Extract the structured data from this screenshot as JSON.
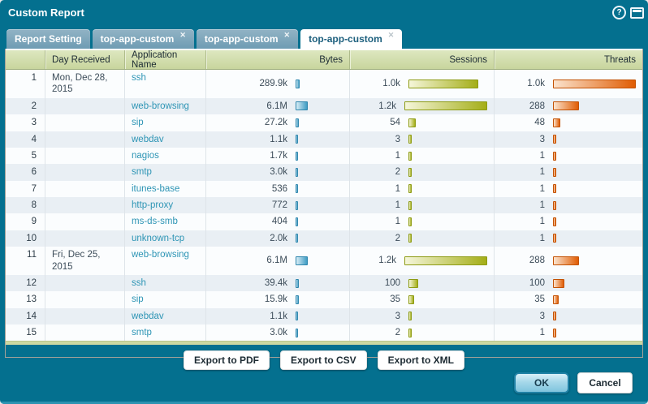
{
  "dialog": {
    "title": "Custom Report"
  },
  "titlebar_icons": {
    "help": "?"
  },
  "tabs": [
    {
      "label": "Report Setting",
      "closable": false,
      "active": false
    },
    {
      "label": "top-app-custom",
      "closable": true,
      "active": false
    },
    {
      "label": "top-app-custom",
      "closable": true,
      "active": false
    },
    {
      "label": "top-app-custom",
      "closable": true,
      "active": true
    }
  ],
  "table": {
    "columns": [
      "",
      "Day Received",
      "Application Name",
      "Bytes",
      "Sessions",
      "Threats"
    ],
    "rows": [
      {
        "num": "1",
        "day": "Mon, Dec 28, 2015",
        "app": "ssh",
        "bytes": "289.9k",
        "bytes_bar": 5,
        "sessions": "1.0k",
        "sessions_bar": 86,
        "threats": "1.0k",
        "threats_bar": 102
      },
      {
        "num": "2",
        "day": "",
        "app": "web-browsing",
        "bytes": "6.1M",
        "bytes_bar": 15,
        "sessions": "1.2k",
        "sessions_bar": 102,
        "threats": "288",
        "threats_bar": 32
      },
      {
        "num": "3",
        "day": "",
        "app": "sip",
        "bytes": "27.2k",
        "bytes_bar": 4,
        "sessions": "54",
        "sessions_bar": 9,
        "threats": "48",
        "threats_bar": 9
      },
      {
        "num": "4",
        "day": "",
        "app": "webdav",
        "bytes": "1.1k",
        "bytes_bar": 3,
        "sessions": "3",
        "sessions_bar": 4,
        "threats": "3",
        "threats_bar": 4
      },
      {
        "num": "5",
        "day": "",
        "app": "nagios",
        "bytes": "1.7k",
        "bytes_bar": 3,
        "sessions": "1",
        "sessions_bar": 4,
        "threats": "1",
        "threats_bar": 4
      },
      {
        "num": "6",
        "day": "",
        "app": "smtp",
        "bytes": "3.0k",
        "bytes_bar": 3,
        "sessions": "2",
        "sessions_bar": 4,
        "threats": "1",
        "threats_bar": 4
      },
      {
        "num": "7",
        "day": "",
        "app": "itunes-base",
        "bytes": "536",
        "bytes_bar": 3,
        "sessions": "1",
        "sessions_bar": 4,
        "threats": "1",
        "threats_bar": 4
      },
      {
        "num": "8",
        "day": "",
        "app": "http-proxy",
        "bytes": "772",
        "bytes_bar": 3,
        "sessions": "1",
        "sessions_bar": 4,
        "threats": "1",
        "threats_bar": 4
      },
      {
        "num": "9",
        "day": "",
        "app": "ms-ds-smb",
        "bytes": "404",
        "bytes_bar": 3,
        "sessions": "1",
        "sessions_bar": 4,
        "threats": "1",
        "threats_bar": 4
      },
      {
        "num": "10",
        "day": "",
        "app": "unknown-tcp",
        "bytes": "2.0k",
        "bytes_bar": 3,
        "sessions": "2",
        "sessions_bar": 4,
        "threats": "1",
        "threats_bar": 4
      },
      {
        "num": "11",
        "day": "Fri, Dec 25, 2015",
        "app": "web-browsing",
        "bytes": "6.1M",
        "bytes_bar": 15,
        "sessions": "1.2k",
        "sessions_bar": 102,
        "threats": "288",
        "threats_bar": 32
      },
      {
        "num": "12",
        "day": "",
        "app": "ssh",
        "bytes": "39.4k",
        "bytes_bar": 4,
        "sessions": "100",
        "sessions_bar": 12,
        "threats": "100",
        "threats_bar": 14
      },
      {
        "num": "13",
        "day": "",
        "app": "sip",
        "bytes": "15.9k",
        "bytes_bar": 4,
        "sessions": "35",
        "sessions_bar": 7,
        "threats": "35",
        "threats_bar": 7
      },
      {
        "num": "14",
        "day": "",
        "app": "webdav",
        "bytes": "1.1k",
        "bytes_bar": 3,
        "sessions": "3",
        "sessions_bar": 4,
        "threats": "3",
        "threats_bar": 4
      },
      {
        "num": "15",
        "day": "",
        "app": "smtp",
        "bytes": "3.0k",
        "bytes_bar": 3,
        "sessions": "2",
        "sessions_bar": 4,
        "threats": "1",
        "threats_bar": 4
      }
    ]
  },
  "export_buttons": [
    "Export to PDF",
    "Export to CSV",
    "Export to XML"
  ],
  "footer": {
    "ok_label": "OK",
    "cancel_label": "Cancel"
  },
  "colors": {
    "dialog_bg": "#04708f",
    "tab_inactive_bg": "#7da6bb",
    "tab_active_bg": "#ffffff",
    "header_bg": "#d3dfad",
    "row_alt_bg": "#e9eff4",
    "link": "#2e95b5",
    "bytes_bar": "#3f9cc3",
    "sessions_bar": "#a4ae17",
    "threats_bar": "#e05d04",
    "ok_button_border": "#1f81a5"
  }
}
